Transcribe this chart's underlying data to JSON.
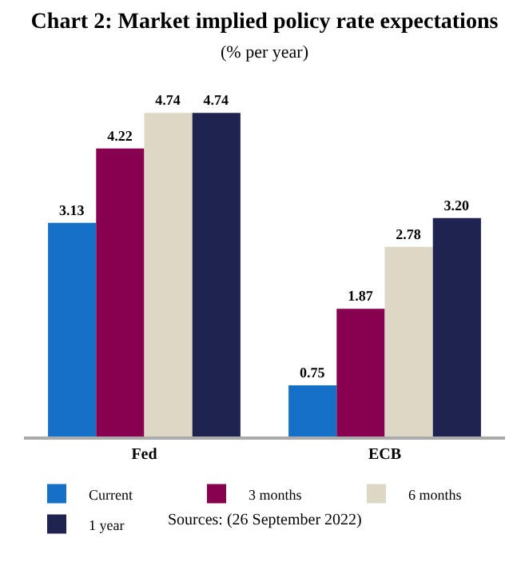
{
  "chart_data": {
    "type": "bar",
    "title": "Chart 2: Market implied policy rate expectations",
    "subtitle": "(% per year)",
    "categories": [
      "Fed",
      "ECB"
    ],
    "series": [
      {
        "name": "Current",
        "color": "#1570c6",
        "values": [
          3.13,
          0.75
        ],
        "value_labels": [
          "3.13",
          "0.75"
        ]
      },
      {
        "name": "3 months",
        "color": "#880050",
        "values": [
          4.22,
          1.87
        ],
        "value_labels": [
          "4.22",
          "1.87"
        ]
      },
      {
        "name": "6 months",
        "color": "#ddd8c6",
        "values": [
          4.74,
          2.78
        ],
        "value_labels": [
          "4.74",
          "2.78"
        ]
      },
      {
        "name": "1 year",
        "color": "#1f2350",
        "values": [
          4.74,
          3.2
        ],
        "value_labels": [
          "4.74",
          "3.20"
        ]
      }
    ],
    "legend": "bottom",
    "annotations": [
      "Sources: (26 September 2022)"
    ]
  }
}
